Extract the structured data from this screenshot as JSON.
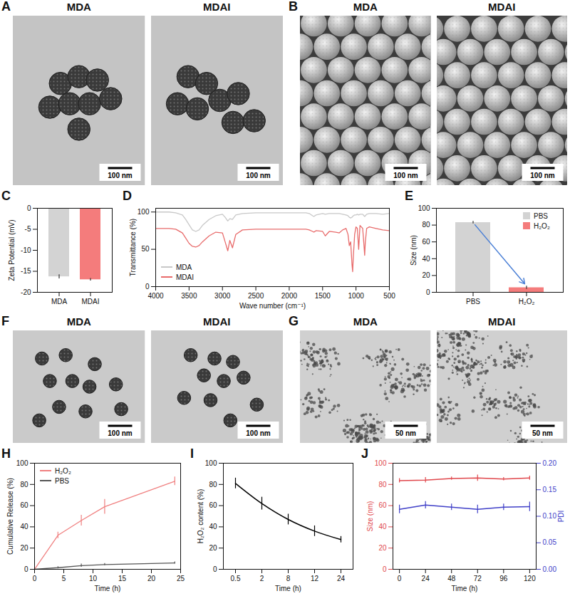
{
  "chart_data": [
    {
      "panel": "A",
      "type": "image",
      "titles": [
        "MDA",
        "MDAI"
      ],
      "scale_bar": "100 nm"
    },
    {
      "panel": "B",
      "type": "image",
      "titles": [
        "MDA",
        "MDAI"
      ],
      "scale_bar": "100 nm"
    },
    {
      "panel": "C",
      "type": "bar",
      "categories": [
        "MDA",
        "MDAI"
      ],
      "values": [
        -16.3,
        -17.0
      ],
      "errors": [
        0.5,
        0.3
      ],
      "colors": [
        "#d3d3d3",
        "#f47c7c"
      ],
      "y_label": "Zeta Potential (mV)",
      "ylim": [
        -20,
        0
      ],
      "yticks": [
        -20,
        -15,
        -10,
        -5,
        0
      ]
    },
    {
      "panel": "D",
      "type": "line",
      "x": [
        4000,
        3800,
        3700,
        3600,
        3550,
        3500,
        3450,
        3400,
        3350,
        3300,
        3200,
        3100,
        3000,
        2960,
        2920,
        2890,
        2850,
        2800,
        2700,
        2500,
        2300,
        2100,
        1900,
        1750,
        1700,
        1650,
        1630,
        1600,
        1500,
        1460,
        1400,
        1300,
        1250,
        1200,
        1150,
        1120,
        1100,
        1080,
        1060,
        1050,
        1040,
        1020,
        1000,
        980,
        960,
        940,
        920,
        900,
        880,
        870,
        860,
        840,
        800,
        700,
        600,
        500
      ],
      "series": [
        {
          "name": "MDA",
          "color": "#c8c8c8",
          "values": [
            100,
            100,
            99,
            96,
            90,
            83,
            76,
            74,
            76,
            82,
            90,
            95,
            97,
            93,
            88,
            91,
            90,
            96,
            98,
            99,
            99,
            99,
            99,
            99,
            98,
            95,
            94,
            96,
            98,
            97,
            98,
            98,
            98,
            97,
            96,
            95,
            93,
            92,
            93,
            94,
            95,
            96,
            96,
            97,
            96,
            97,
            97,
            97,
            95,
            94,
            95,
            97,
            98,
            98,
            97,
            98
          ]
        },
        {
          "name": "MDAI",
          "color": "#e86b6b",
          "values": [
            78,
            78,
            77,
            72,
            65,
            58,
            54,
            53,
            55,
            60,
            68,
            73,
            72,
            60,
            48,
            62,
            52,
            70,
            76,
            77,
            77,
            77,
            77,
            77,
            76,
            74,
            73,
            75,
            74,
            68,
            74,
            73,
            72,
            76,
            78,
            70,
            55,
            60,
            30,
            20,
            40,
            70,
            80,
            78,
            50,
            82,
            80,
            78,
            55,
            42,
            60,
            78,
            80,
            78,
            76,
            75
          ]
        }
      ],
      "x_label": "Wave number (cm⁻¹)",
      "y_label": "Transmittance (%)",
      "xlim": [
        4000,
        500
      ],
      "xticks": [
        4000,
        3500,
        3000,
        2500,
        2000,
        1500,
        1000,
        500
      ],
      "ylim": [
        0,
        105
      ],
      "yticks": [
        0,
        50,
        100
      ],
      "legend": "bottom-left"
    },
    {
      "panel": "E",
      "type": "bar",
      "categories": [
        "PBS",
        "H₂O₂"
      ],
      "values": [
        83,
        5.5
      ],
      "errors": [
        1.5,
        2
      ],
      "colors": [
        "#d3d3d3",
        "#f47c7c"
      ],
      "y_label": "Size (nm)",
      "ylim": [
        0,
        100
      ],
      "yticks": [
        0,
        20,
        40,
        60,
        80,
        100
      ],
      "legend": "top-right"
    },
    {
      "panel": "F",
      "type": "image",
      "titles": [
        "MDA",
        "MDAI"
      ],
      "scale_bar": "100 nm"
    },
    {
      "panel": "G",
      "type": "image",
      "titles": [
        "MDA",
        "MDAI"
      ],
      "scale_bar": "50 nm"
    },
    {
      "panel": "H",
      "type": "line",
      "x": [
        0,
        4,
        8,
        12,
        24
      ],
      "series": [
        {
          "name": "H₂O₂",
          "color": "#f08080",
          "values": [
            0,
            32,
            46,
            59,
            83
          ],
          "errors": [
            0,
            3,
            5,
            7,
            4
          ]
        },
        {
          "name": "PBS",
          "color": "#555555",
          "values": [
            0,
            1.5,
            3.5,
            4.5,
            6
          ],
          "errors": [
            0,
            1,
            1.5,
            1,
            1
          ]
        }
      ],
      "x_label": "Time (h)",
      "y_label": "Cumulative Release (%)",
      "xlim": [
        0,
        25
      ],
      "xticks": [
        0,
        5,
        10,
        15,
        20,
        25
      ],
      "ylim": [
        0,
        100
      ],
      "yticks": [
        0,
        20,
        40,
        60,
        80,
        100
      ],
      "legend": "top-left"
    },
    {
      "panel": "I",
      "type": "line",
      "categories": [
        "0.5",
        "2",
        "8",
        "12",
        "24"
      ],
      "values": [
        81,
        62,
        47,
        36,
        28
      ],
      "errors": [
        5,
        6,
        5,
        5,
        3
      ],
      "color": "#000000",
      "x_label": "Time (h)",
      "y_label": "H₂O₂ content (%)",
      "ylim": [
        0,
        100
      ],
      "yticks": [
        0,
        20,
        40,
        60,
        80,
        100
      ]
    },
    {
      "panel": "J",
      "type": "line",
      "x": [
        0,
        24,
        48,
        72,
        96,
        120
      ],
      "series": [
        {
          "name": "Size (nm)",
          "axis": "y",
          "color": "#e0474c",
          "values": [
            83.5,
            84,
            85.5,
            86,
            85,
            86
          ],
          "errors": [
            2,
            2.5,
            1.5,
            3,
            1.5,
            2
          ]
        },
        {
          "name": "PDI",
          "axis": "y2",
          "color": "#4040c8",
          "values": [
            0.113,
            0.121,
            0.117,
            0.113,
            0.117,
            0.118
          ],
          "errors": [
            0.008,
            0.007,
            0.006,
            0.008,
            0.006,
            0.009
          ]
        }
      ],
      "x_label": "Time (h)",
      "xlim": [
        -6,
        126
      ],
      "xticks": [
        0,
        24,
        48,
        72,
        96,
        120
      ],
      "ylim": [
        0,
        100
      ],
      "yticks": [
        0,
        20,
        40,
        60,
        80,
        100
      ],
      "y2lim": [
        0,
        0.2
      ],
      "y2ticks": [
        {
          "value": 0,
          "label": "0.00"
        },
        {
          "value": 0.05,
          "label": "0.05"
        },
        {
          "value": 0.1,
          "label": "0.10"
        },
        {
          "value": 0.15,
          "label": "0.15"
        },
        {
          "value": 0.2,
          "label": "0.20"
        }
      ]
    }
  ]
}
